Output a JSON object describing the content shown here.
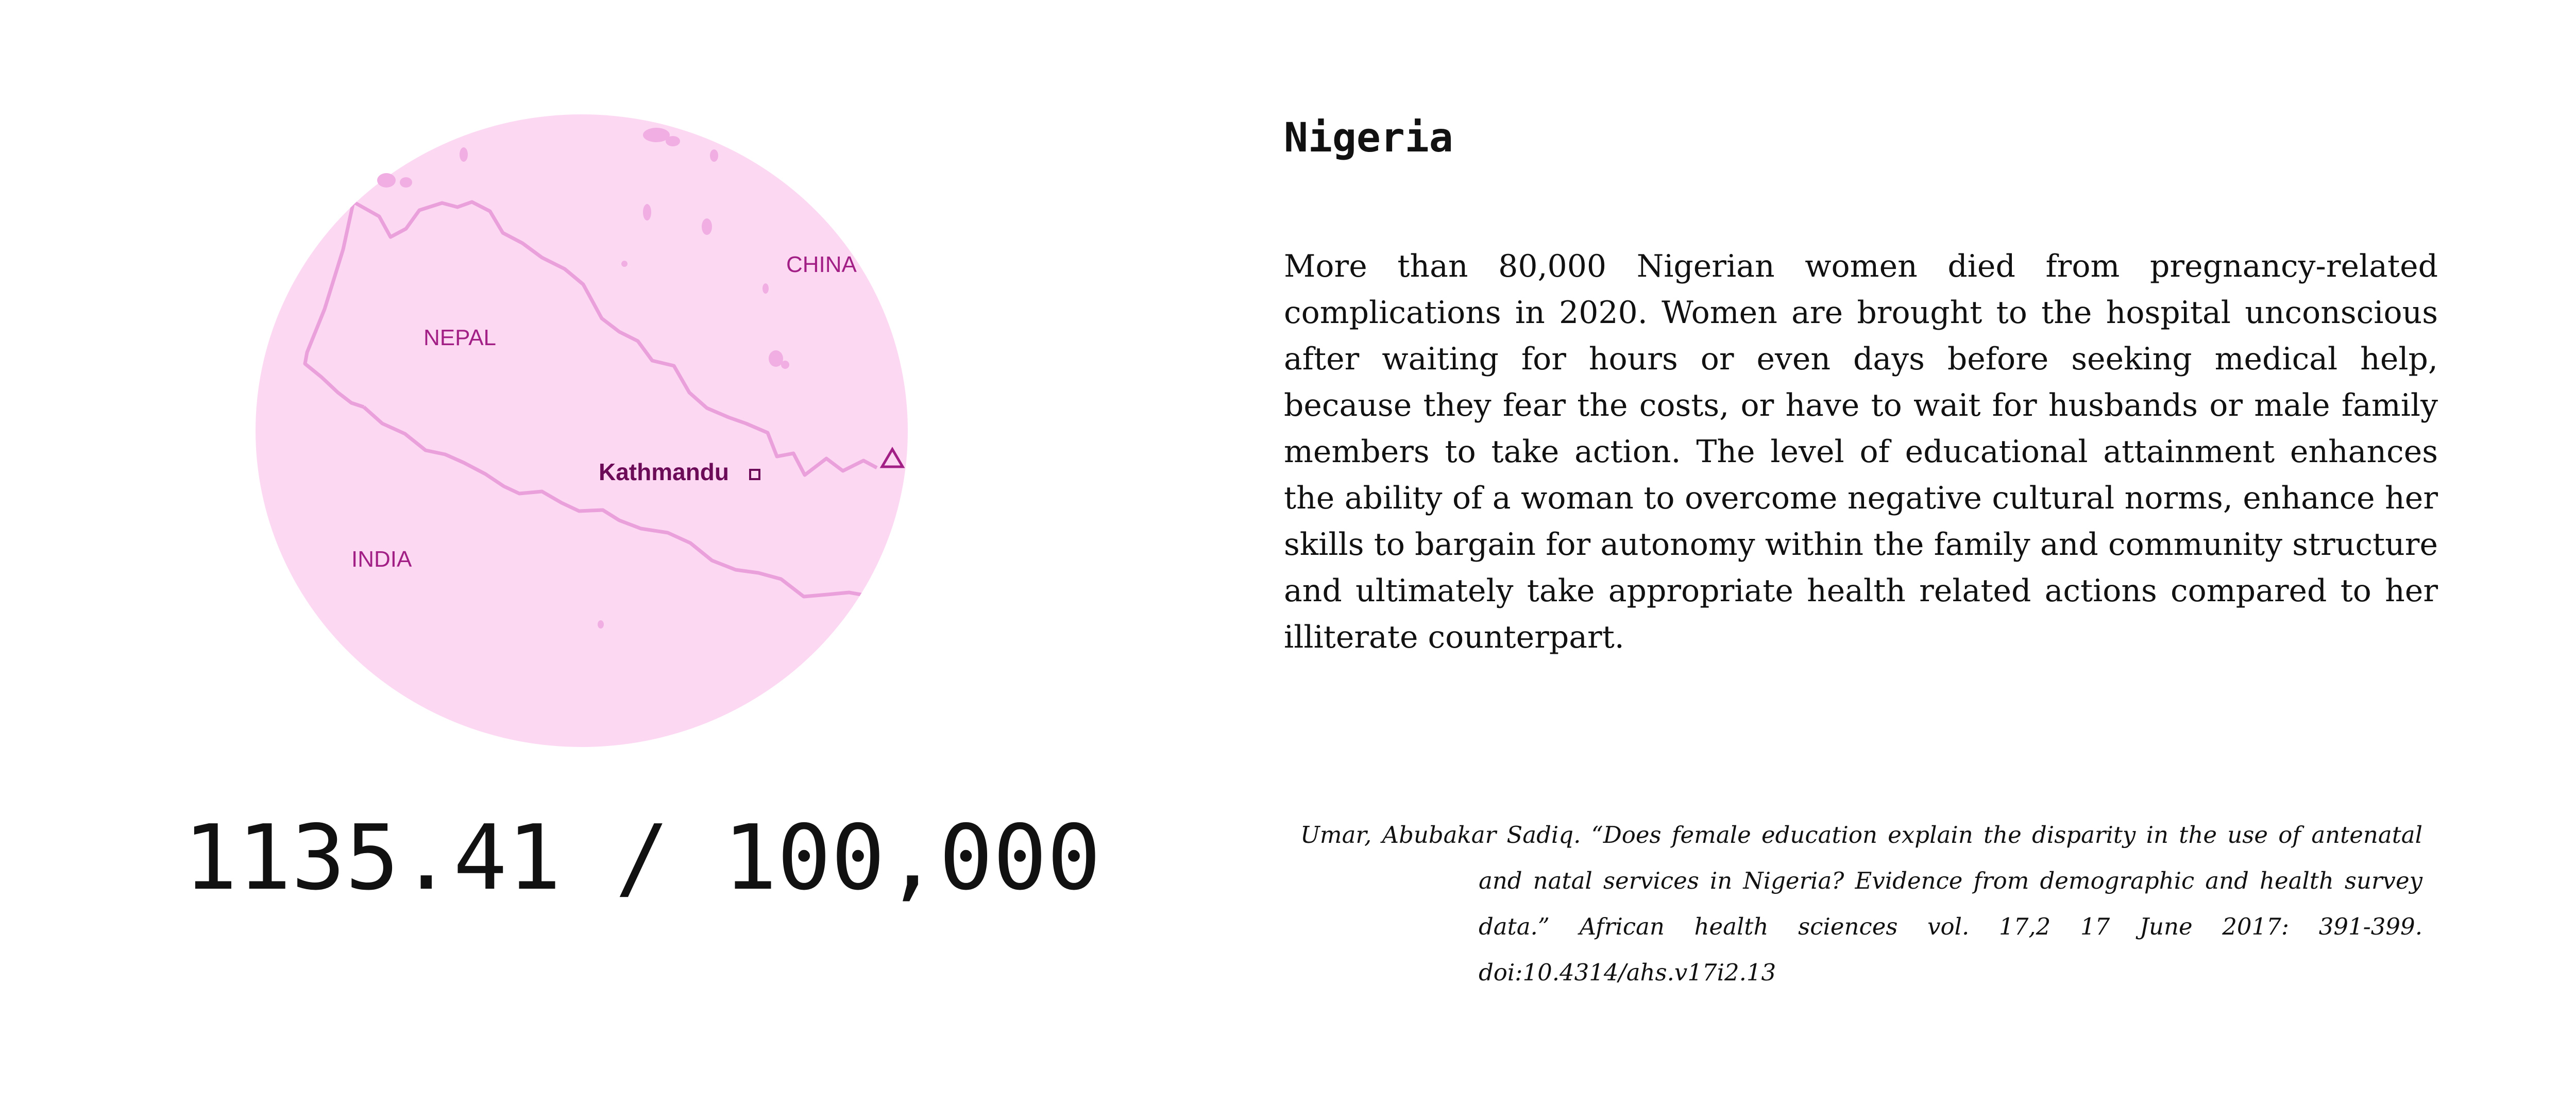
{
  "map": {
    "fill_color": "#fcd8f3",
    "border_color": "#eaa0db",
    "label_color": "#a21f86",
    "labels": {
      "nepal": "NEPAL",
      "china": "CHINA",
      "india": "INDIA",
      "capital": "Kathmandu"
    }
  },
  "stat": {
    "value": "1135.41 / 100,000"
  },
  "article": {
    "title": "Nigeria",
    "body": "More than 80,000 Nigerian women died from pregnancy-related complications in 2020. Women are brought to the hospital unconscious after waiting for hours or even days before seeking medical help, because they fear the costs, or have to wait for husbands or male family members to take action. The level of educational attainment enhances the ability of a woman to overcome negative cultural norms, enhance her skills to bargain for autonomy within the family and community structure and ultimately take appropriate health related actions compared to her illiterate counterpart.",
    "citation": "Umar, Abubakar Sadiq. “Does female education explain the disparity in the use of antenatal and natal services in Nigeria? Evidence from demographic and health survey data.” African health sciences vol. 17,2 17 June 2017: 391-399. doi:10.4314/ahs.v17i2.13"
  }
}
